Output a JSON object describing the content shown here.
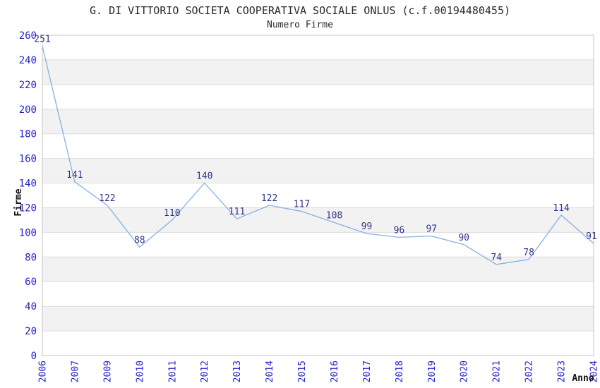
{
  "chart_data": {
    "type": "line",
    "title": "G. DI VITTORIO SOCIETA COOPERATIVA SOCIALE ONLUS (c.f.00194480455)",
    "subtitle": "Numero Firme",
    "xlabel": "Anno",
    "ylabel": "Firme",
    "x": [
      "2006",
      "2007",
      "2009",
      "2010",
      "2011",
      "2012",
      "2013",
      "2014",
      "2015",
      "2016",
      "2017",
      "2018",
      "2019",
      "2020",
      "2021",
      "2022",
      "2023",
      "2024"
    ],
    "values": [
      251,
      141,
      122,
      88,
      110,
      140,
      111,
      122,
      117,
      108,
      99,
      96,
      97,
      90,
      74,
      78,
      114,
      91
    ],
    "ylim": [
      0,
      260
    ],
    "ytick_step": 20,
    "grid": true,
    "legend": "none",
    "markers": "none",
    "band_pattern": "alternating-horizontal",
    "colors": {
      "line": "#85b1e3",
      "tick_label": "#2222cc",
      "data_label": "#333388",
      "band": "#f2f2f2",
      "gridline": "#dcdcdc",
      "border": "#c6c6c6",
      "title": "#2a2a2a",
      "axis_title": "#111111"
    }
  }
}
